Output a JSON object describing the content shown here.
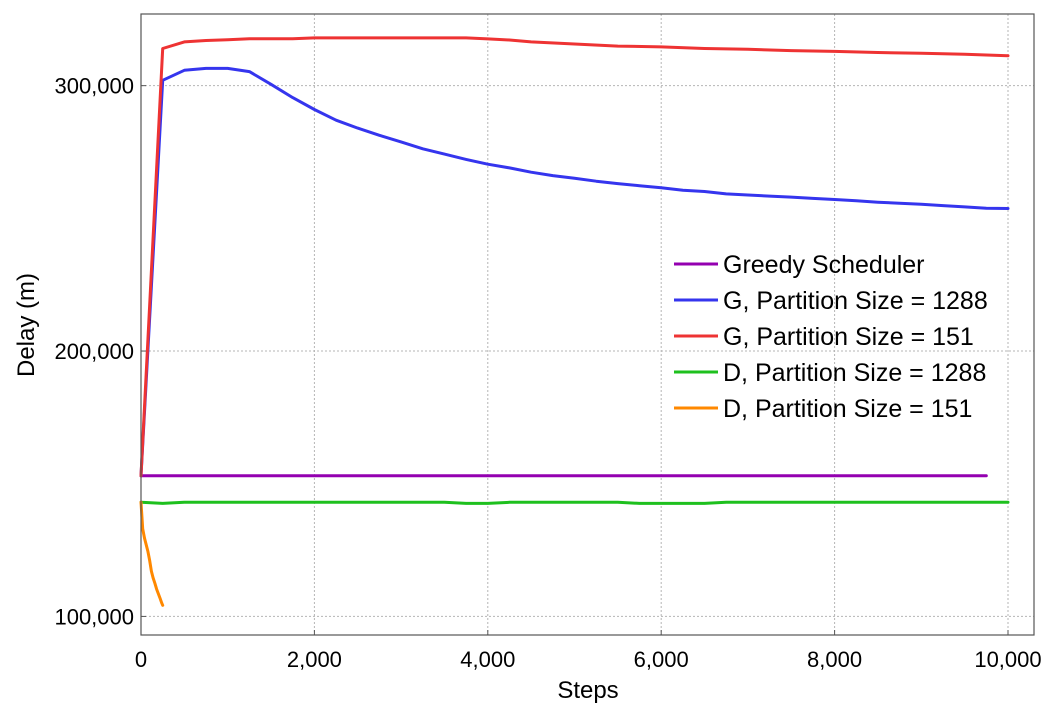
{
  "chart_data": {
    "type": "line",
    "title": "",
    "xlabel": "Steps",
    "ylabel": "Delay (m)",
    "xlim": [
      0,
      10300
    ],
    "ylim": [
      93000,
      327000
    ],
    "x_ticks": [
      {
        "value": 0,
        "label": "0"
      },
      {
        "value": 2000,
        "label": "2,000"
      },
      {
        "value": 4000,
        "label": "4,000"
      },
      {
        "value": 6000,
        "label": "6,000"
      },
      {
        "value": 8000,
        "label": "8,000"
      },
      {
        "value": 10000,
        "label": "10,000"
      }
    ],
    "y_ticks": [
      {
        "value": 100000,
        "label": "100,000"
      },
      {
        "value": 200000,
        "label": "200,000"
      },
      {
        "value": 300000,
        "label": "300,000"
      }
    ],
    "grid": true,
    "legend_position": "right",
    "series": [
      {
        "name": "Greedy Scheduler",
        "color": "#9400b0",
        "x": [
          0,
          9750
        ],
        "y": [
          153000,
          153000
        ]
      },
      {
        "name": "G, Partition Size = 1288",
        "color": "#3535ee",
        "x": [
          0,
          250,
          500,
          750,
          1000,
          1250,
          1500,
          1750,
          2000,
          2250,
          2500,
          2750,
          3000,
          3250,
          3500,
          3750,
          4000,
          4250,
          4500,
          4750,
          5000,
          5250,
          5500,
          5750,
          6000,
          6250,
          6500,
          6750,
          7000,
          7250,
          7500,
          7750,
          8000,
          8250,
          8500,
          8750,
          9000,
          9250,
          9500,
          9750,
          10000
        ],
        "y": [
          153000,
          302000,
          305800,
          306500,
          306500,
          305300,
          300500,
          295500,
          291000,
          287000,
          284000,
          281300,
          278800,
          276200,
          274200,
          272200,
          270400,
          269000,
          267400,
          266100,
          265100,
          264000,
          263100,
          262300,
          261500,
          260600,
          260100,
          259200,
          258800,
          258400,
          258000,
          257500,
          257100,
          256600,
          256100,
          255700,
          255300,
          254800,
          254300,
          253800,
          253700
        ]
      },
      {
        "name": "G, Partition Size = 151",
        "color": "#ee3333",
        "x": [
          0,
          250,
          500,
          750,
          1000,
          1250,
          1500,
          1750,
          2000,
          2500,
          3000,
          3500,
          3750,
          4000,
          4250,
          4500,
          5000,
          5500,
          6000,
          6500,
          7000,
          7500,
          8000,
          8500,
          9000,
          9500,
          10000
        ],
        "y": [
          153000,
          314000,
          316500,
          317000,
          317300,
          317700,
          317700,
          317700,
          318000,
          318000,
          318000,
          318000,
          318000,
          317600,
          317200,
          316500,
          315700,
          314900,
          314600,
          314000,
          313700,
          313200,
          312900,
          312500,
          312200,
          311800,
          311300
        ]
      },
      {
        "name": "D, Partition Size = 1288",
        "color": "#1ec01e",
        "x": [
          0,
          250,
          500,
          750,
          1000,
          1500,
          2000,
          2500,
          3000,
          3500,
          3750,
          4000,
          4250,
          4500,
          5000,
          5500,
          5750,
          6000,
          6500,
          6750,
          7000,
          7500,
          8000,
          8500,
          9000,
          9500,
          10000
        ],
        "y": [
          143000,
          142600,
          143000,
          143000,
          143000,
          143000,
          143000,
          143000,
          143000,
          143000,
          142600,
          142600,
          143000,
          143000,
          143000,
          143000,
          142600,
          142600,
          142600,
          143000,
          143000,
          143000,
          143000,
          143000,
          143000,
          143000,
          143000
        ]
      },
      {
        "name": "D, Partition Size = 151",
        "color": "#ff8800",
        "x": [
          0,
          20,
          40,
          60,
          80,
          100,
          120,
          140,
          160,
          180,
          200,
          220,
          240,
          250
        ],
        "y": [
          143000,
          133000,
          129500,
          127000,
          124500,
          121000,
          117000,
          114500,
          112500,
          110300,
          108600,
          106800,
          105000,
          104200
        ]
      }
    ]
  }
}
